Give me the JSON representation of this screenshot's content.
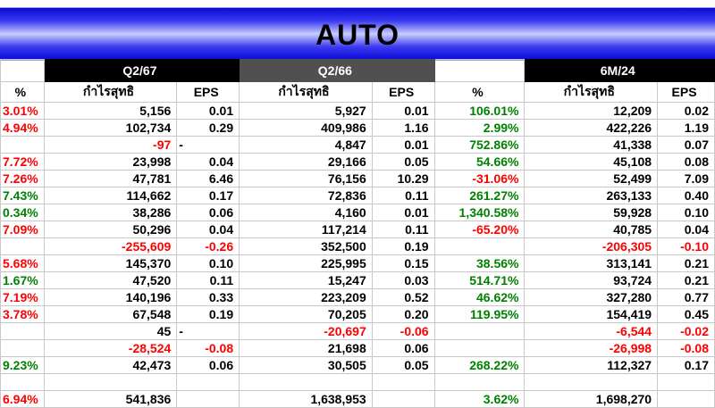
{
  "title": "AUTO",
  "periods": [
    "Q2/67",
    "Q2/66",
    "6M/24"
  ],
  "headers": {
    "pct_prev": "%",
    "q267_profit": "กำไรสุทธิ",
    "q267_eps": "EPS",
    "q266_profit": "กำไรสุทธิ",
    "q266_eps": "EPS",
    "pct": "%",
    "m624_profit": "กำไรสุทธิ",
    "m624_eps": "EPS"
  },
  "colors": {
    "negative": "#ff0000",
    "positive": "#008000",
    "header_black": "#000000",
    "header_gray": "#505050",
    "title_blue": "#1010e0"
  },
  "rows": [
    [
      "3.01%",
      "5,156",
      "0.01",
      "5,927",
      "0.01",
      "106.01%",
      "12,209",
      "0.02"
    ],
    [
      "4.94%",
      "102,734",
      "0.29",
      "409,986",
      "1.16",
      "2.99%",
      "422,226",
      "1.19"
    ],
    [
      "",
      "-97",
      "-",
      "4,847",
      "0.01",
      "752.86%",
      "41,338",
      "0.07"
    ],
    [
      "7.72%",
      "23,998",
      "0.04",
      "29,166",
      "0.05",
      "54.66%",
      "45,108",
      "0.08"
    ],
    [
      "7.26%",
      "47,781",
      "6.46",
      "76,156",
      "10.29",
      "-31.06%",
      "52,499",
      "7.09"
    ],
    [
      "7.43%",
      "114,662",
      "0.17",
      "72,836",
      "0.11",
      "261.27%",
      "263,133",
      "0.40"
    ],
    [
      "0.34%",
      "38,286",
      "0.06",
      "4,160",
      "0.01",
      "1,340.58%",
      "59,928",
      "0.10"
    ],
    [
      "7.09%",
      "50,296",
      "0.04",
      "117,214",
      "0.11",
      "-65.20%",
      "40,785",
      "0.04"
    ],
    [
      "",
      "-255,609",
      "-0.26",
      "352,500",
      "0.19",
      "",
      "-206,305",
      "-0.10"
    ],
    [
      "5.68%",
      "145,370",
      "0.10",
      "225,995",
      "0.15",
      "38.56%",
      "313,141",
      "0.21"
    ],
    [
      "1.67%",
      "47,520",
      "0.11",
      "15,247",
      "0.03",
      "514.71%",
      "93,724",
      "0.21"
    ],
    [
      "7.19%",
      "140,196",
      "0.33",
      "223,209",
      "0.52",
      "46.62%",
      "327,280",
      "0.77"
    ],
    [
      "3.78%",
      "67,548",
      "0.19",
      "70,205",
      "0.20",
      "119.95%",
      "154,419",
      "0.45"
    ],
    [
      "",
      "45",
      "-",
      "-20,697",
      "-0.06",
      "",
      "-6,544",
      "-0.02"
    ],
    [
      "",
      "-28,524",
      "-0.08",
      "21,698",
      "0.06",
      "",
      "-26,998",
      "-0.08"
    ],
    [
      "9.23%",
      "42,473",
      "0.06",
      "30,505",
      "0.05",
      "268.22%",
      "112,327",
      "0.17"
    ],
    [
      "",
      "",
      "",
      "",
      "",
      "",
      "",
      ""
    ],
    [
      "6.94%",
      "541,836",
      "",
      "1,638,953",
      "",
      "3.62%",
      "1,698,270",
      ""
    ]
  ],
  "row_colors": [
    [
      "neg",
      "",
      "",
      "",
      "",
      "pos",
      "",
      ""
    ],
    [
      "neg",
      "",
      "",
      "",
      "",
      "pos",
      "",
      ""
    ],
    [
      "",
      "neg",
      "",
      "",
      "",
      "pos",
      "",
      ""
    ],
    [
      "neg",
      "",
      "",
      "",
      "",
      "pos",
      "",
      ""
    ],
    [
      "neg",
      "",
      "",
      "",
      "",
      "neg",
      "",
      ""
    ],
    [
      "pos",
      "",
      "",
      "",
      "",
      "pos",
      "",
      ""
    ],
    [
      "pos",
      "",
      "",
      "",
      "",
      "pos",
      "",
      ""
    ],
    [
      "neg",
      "",
      "",
      "",
      "",
      "neg",
      "",
      ""
    ],
    [
      "",
      "neg",
      "neg",
      "",
      "",
      "",
      "neg",
      "neg"
    ],
    [
      "neg",
      "",
      "",
      "",
      "",
      "pos",
      "",
      ""
    ],
    [
      "pos",
      "",
      "",
      "",
      "",
      "pos",
      "",
      ""
    ],
    [
      "neg",
      "",
      "",
      "",
      "",
      "pos",
      "",
      ""
    ],
    [
      "neg",
      "",
      "",
      "",
      "",
      "pos",
      "",
      ""
    ],
    [
      "",
      "",
      "",
      "neg",
      "neg",
      "",
      "neg",
      "neg"
    ],
    [
      "",
      "neg",
      "neg",
      "",
      "",
      "",
      "neg",
      "neg"
    ],
    [
      "pos",
      "",
      "",
      "",
      "",
      "pos",
      "",
      ""
    ],
    [
      "",
      "",
      "",
      "",
      "",
      "",
      "",
      ""
    ],
    [
      "neg",
      "",
      "",
      "",
      "",
      "pos",
      "",
      ""
    ]
  ]
}
